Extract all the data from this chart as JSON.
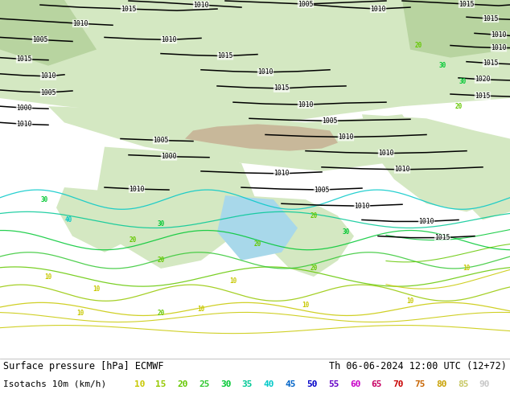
{
  "title_left": "Surface pressure [hPa] ECMWF",
  "title_right": "Th 06-06-2024 12:00 UTC (12+72)",
  "legend_label": "Isotachs 10m (km/h)",
  "isotach_values": [
    10,
    15,
    20,
    25,
    30,
    35,
    40,
    45,
    50,
    55,
    60,
    65,
    70,
    75,
    80,
    85,
    90
  ],
  "isotach_colors": [
    "#c8c800",
    "#96c800",
    "#64c800",
    "#32c832",
    "#00c832",
    "#00c896",
    "#00c8c8",
    "#0064c8",
    "#0000c8",
    "#6400c8",
    "#c800c8",
    "#c80064",
    "#c80000",
    "#c86400",
    "#c8a000",
    "#c8c864",
    "#c8c8c8"
  ],
  "bg_color": "#ffffff",
  "ocean_color": "#a8d8ea",
  "land_color": "#d4e8c2",
  "highland_color": "#c8b89a",
  "figsize": [
    6.34,
    4.9
  ],
  "dpi": 100,
  "font_size": 8.5,
  "legend_font_size": 8.0
}
